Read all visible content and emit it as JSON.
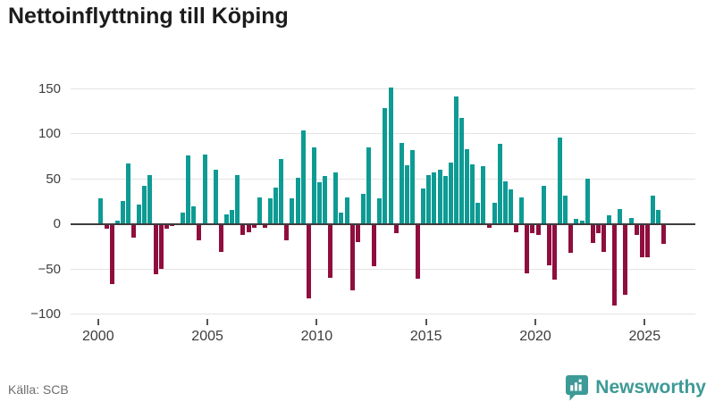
{
  "header": {
    "title": "Nettoinflyttning till Köping"
  },
  "footer": {
    "source": "Källa: SCB",
    "brand": "Newsworthy"
  },
  "colors": {
    "positive_bar": "#0d9b94",
    "negative_bar": "#8f0e3e",
    "zero_axis": "#3d3d3d",
    "gridline": "#e4e4e4",
    "tick_label": "#3d3d3d",
    "brand_teal": "#3d9a96",
    "title_text": "#1c1c1c",
    "source_text": "#6e6e6e"
  },
  "chart_data": {
    "type": "bar",
    "title": "Nettoinflyttning till Köping",
    "xlabel": "",
    "ylabel": "",
    "x_unit": "quarter",
    "start_period": "2000 Q1",
    "end_period": "2025 Q4",
    "ylim": [
      -100,
      150
    ],
    "yticks": [
      150,
      100,
      50,
      0,
      -50,
      -100
    ],
    "xticks": [
      2000,
      2005,
      2010,
      2015,
      2020,
      2025
    ],
    "grid": true,
    "legend": false,
    "values": [
      28,
      -5,
      -67,
      4,
      25,
      67,
      -15,
      21,
      42,
      54,
      -56,
      -50,
      -5,
      -2,
      0,
      12,
      76,
      19,
      -18,
      77,
      0,
      60,
      -31,
      10,
      15,
      54,
      -12,
      -9,
      -4,
      29,
      -4,
      28,
      40,
      72,
      -18,
      28,
      51,
      104,
      -83,
      85,
      46,
      53,
      -60,
      57,
      12,
      29,
      -74,
      -20,
      33,
      85,
      -47,
      28,
      128,
      151,
      -10,
      90,
      65,
      82,
      -61,
      39,
      54,
      57,
      60,
      53,
      68,
      141,
      117,
      83,
      66,
      23,
      64,
      -4,
      23,
      89,
      47,
      38,
      -9,
      29,
      -55,
      -10,
      -12,
      42,
      -46,
      -62,
      96,
      31,
      -32,
      5,
      4,
      50,
      -21,
      -10,
      -31,
      9,
      -91,
      16,
      -79,
      6,
      -12,
      -37,
      -37,
      31,
      15,
      -22
    ]
  }
}
